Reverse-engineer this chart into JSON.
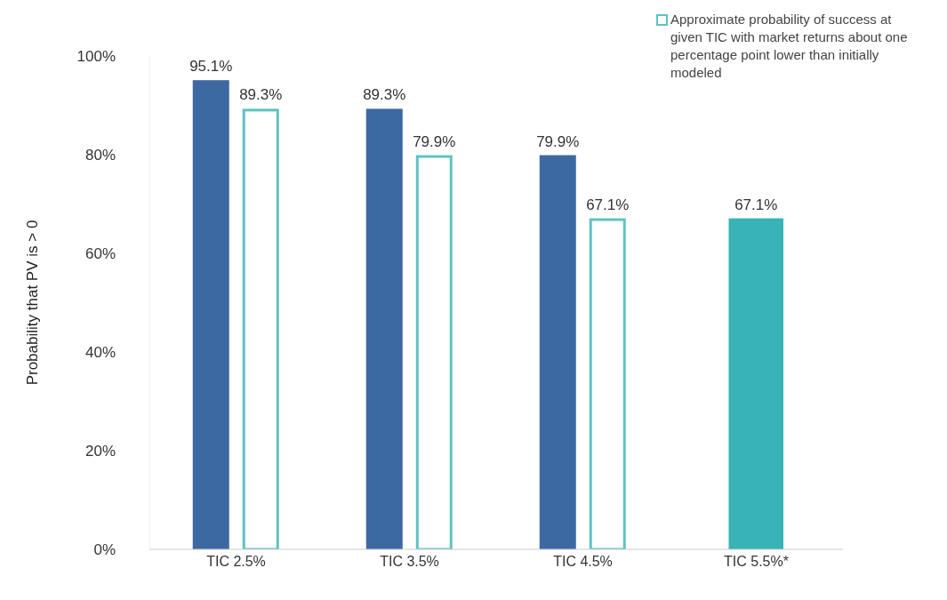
{
  "chart_data": {
    "type": "bar",
    "ylabel": "Probability that PV is > 0",
    "categories": [
      "TIC 2.5%",
      "TIC 3.5%",
      "TIC 4.5%",
      "TIC 5.5%*"
    ],
    "series": [
      {
        "color": "#3d69a3",
        "colors": [
          "#3d69a3",
          "#3d69a3",
          "#3d69a3",
          "#38b3b6"
        ],
        "values": [
          95.1,
          89.3,
          79.9,
          67.1
        ],
        "value_labels": [
          "95.1%",
          "89.3%",
          "79.9%",
          "67.1%"
        ]
      },
      {
        "name": "Approximate probability of success at given TIC with market returns about one percentage point lower than initially modeled",
        "color": "#5fc2c4",
        "values": [
          89.3,
          79.9,
          67.1,
          null
        ],
        "value_labels": [
          "89.3%",
          "79.9%",
          "67.1%",
          null
        ]
      }
    ],
    "ylim": [
      0,
      100
    ],
    "yticks": [
      {
        "value": 0,
        "label": "0%"
      },
      {
        "value": 20,
        "label": "20%"
      },
      {
        "value": 40,
        "label": "40%"
      },
      {
        "value": 60,
        "label": "60%"
      },
      {
        "value": 80,
        "label": "80%"
      },
      {
        "value": 100,
        "label": "100%"
      }
    ],
    "grid": false,
    "legend": "top right"
  }
}
